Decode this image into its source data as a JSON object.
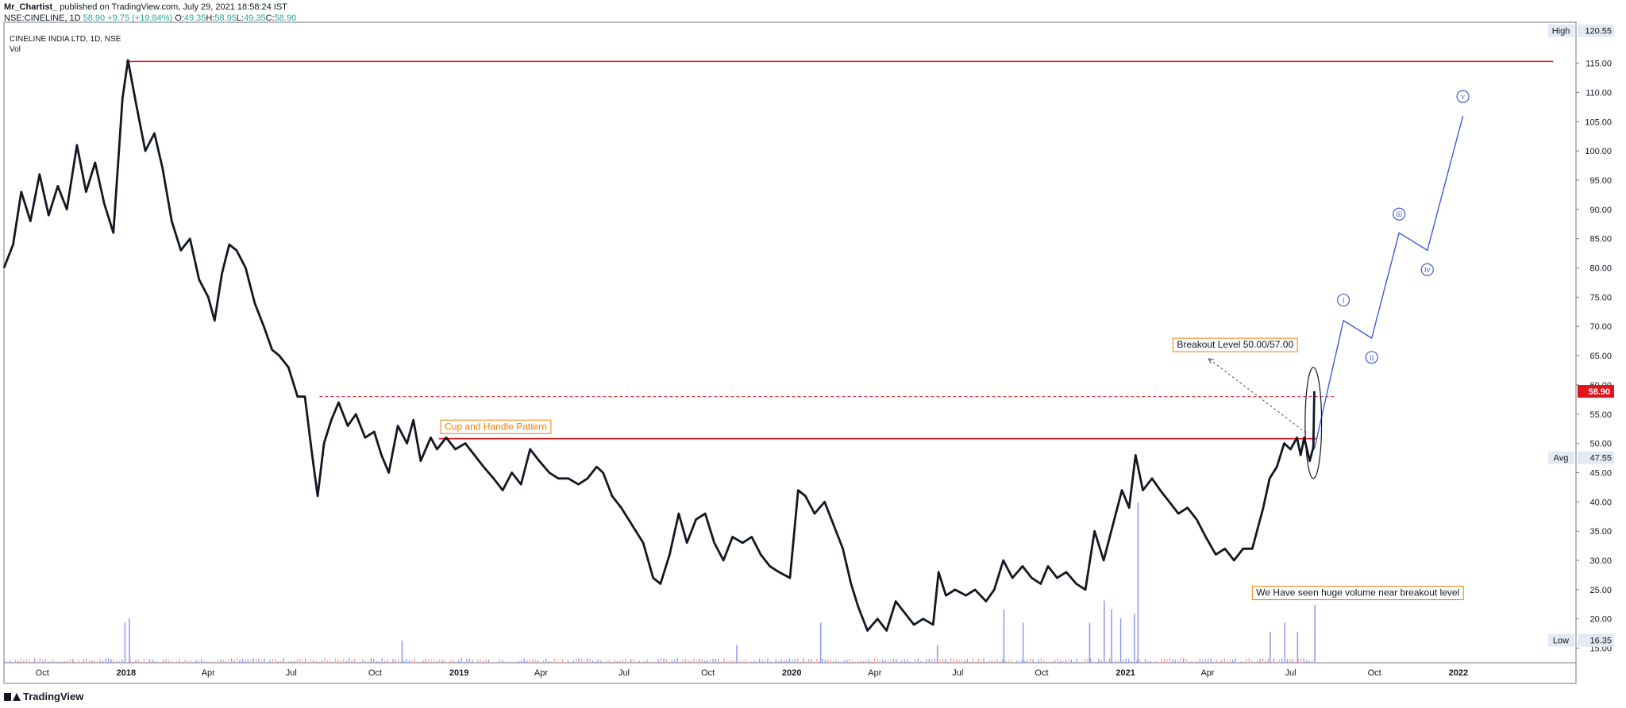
{
  "header": {
    "author": "Mr_Chartist_",
    "published": " published on TradingView.com, July 29, 2021 18:58:24 IST",
    "symbol_line_prefix": "NSE:CINELINE, 1D ",
    "last": "58.90",
    "change": "+9.75 (+19.84%)",
    "o_label": "O:",
    "o": "49.35",
    "h_label": "H:",
    "h": "58.95",
    "l_label": "L:",
    "l": "49.35",
    "c_label": "C:",
    "c": "58.90"
  },
  "chart_legend": {
    "title": "CINELINE INDIA LTD, 1D, NSE",
    "vol_label": "Vol"
  },
  "footer": {
    "brand": "TradingView"
  },
  "colors": {
    "price": "#131722",
    "resistance": "#e0161c",
    "wave": "#3d5bd9",
    "up_vol": "#8f98e8",
    "down_vol": "#f2a0a0",
    "text_orange": "#f57c00",
    "last_badge": "#e0161c"
  },
  "chart_data": {
    "type": "line",
    "title": "CINELINE INDIA LTD, 1D, NSE",
    "x_range": [
      "2017-08-20",
      "2022-05-10"
    ],
    "ylim": [
      12.5,
      122
    ],
    "scale": "linear",
    "grid": false,
    "x_tick_labels": [
      {
        "label": "Oct",
        "date": "2017-10-01",
        "bold": false
      },
      {
        "label": "2018",
        "date": "2018-01-01",
        "bold": true
      },
      {
        "label": "Apr",
        "date": "2018-04-01",
        "bold": false
      },
      {
        "label": "Jul",
        "date": "2018-07-01",
        "bold": false
      },
      {
        "label": "Oct",
        "date": "2018-10-01",
        "bold": false
      },
      {
        "label": "2019",
        "date": "2019-01-01",
        "bold": true
      },
      {
        "label": "Apr",
        "date": "2019-04-01",
        "bold": false
      },
      {
        "label": "Jul",
        "date": "2019-07-01",
        "bold": false
      },
      {
        "label": "Oct",
        "date": "2019-10-01",
        "bold": false
      },
      {
        "label": "2020",
        "date": "2020-01-01",
        "bold": true
      },
      {
        "label": "Apr",
        "date": "2020-04-01",
        "bold": false
      },
      {
        "label": "Jul",
        "date": "2020-07-01",
        "bold": false
      },
      {
        "label": "Oct",
        "date": "2020-10-01",
        "bold": false
      },
      {
        "label": "2021",
        "date": "2021-01-01",
        "bold": true
      },
      {
        "label": "Apr",
        "date": "2021-04-01",
        "bold": false
      },
      {
        "label": "Jul",
        "date": "2021-07-01",
        "bold": false
      },
      {
        "label": "Oct",
        "date": "2021-10-01",
        "bold": false
      },
      {
        "label": "2022",
        "date": "2022-01-01",
        "bold": true
      }
    ],
    "y_tick_labels": [
      "115.00",
      "110.00",
      "105.00",
      "100.00",
      "95.00",
      "90.00",
      "85.00",
      "80.00",
      "75.00",
      "70.00",
      "65.00",
      "60.00",
      "55.00",
      "50.00",
      "45.00",
      "40.00",
      "35.00",
      "30.00",
      "25.00",
      "20.00",
      "15.00"
    ],
    "y_tick_values": [
      115,
      110,
      105,
      100,
      95,
      90,
      85,
      80,
      75,
      70,
      65,
      60,
      55,
      50,
      45,
      40,
      35,
      30,
      25,
      20,
      15
    ],
    "series": [
      {
        "type": "line",
        "points": [
          [
            "2017-08-20",
            80
          ],
          [
            "2017-08-30",
            84
          ],
          [
            "2017-09-08",
            93
          ],
          [
            "2017-09-18",
            88
          ],
          [
            "2017-09-28",
            96
          ],
          [
            "2017-10-08",
            89
          ],
          [
            "2017-10-18",
            94
          ],
          [
            "2017-10-28",
            90
          ],
          [
            "2017-11-08",
            101
          ],
          [
            "2017-11-18",
            93
          ],
          [
            "2017-11-28",
            98
          ],
          [
            "2017-12-08",
            91
          ],
          [
            "2017-12-18",
            86
          ],
          [
            "2017-12-28",
            109
          ],
          [
            "2018-01-03",
            115.5
          ],
          [
            "2018-01-12",
            108
          ],
          [
            "2018-01-22",
            100
          ],
          [
            "2018-02-01",
            103
          ],
          [
            "2018-02-10",
            97
          ],
          [
            "2018-02-20",
            88
          ],
          [
            "2018-03-02",
            83
          ],
          [
            "2018-03-12",
            85
          ],
          [
            "2018-03-22",
            78
          ],
          [
            "2018-04-01",
            75
          ],
          [
            "2018-04-08",
            71
          ],
          [
            "2018-04-16",
            79
          ],
          [
            "2018-04-24",
            84
          ],
          [
            "2018-05-02",
            83
          ],
          [
            "2018-05-12",
            80
          ],
          [
            "2018-05-22",
            74
          ],
          [
            "2018-06-01",
            70
          ],
          [
            "2018-06-10",
            66
          ],
          [
            "2018-06-18",
            65
          ],
          [
            "2018-06-28",
            63
          ],
          [
            "2018-07-08",
            58
          ],
          [
            "2018-07-16",
            58
          ],
          [
            "2018-07-24",
            48
          ],
          [
            "2018-07-30",
            41
          ],
          [
            "2018-08-06",
            50
          ],
          [
            "2018-08-14",
            54
          ],
          [
            "2018-08-22",
            57
          ],
          [
            "2018-09-01",
            53
          ],
          [
            "2018-09-10",
            55
          ],
          [
            "2018-09-20",
            51
          ],
          [
            "2018-09-30",
            52
          ],
          [
            "2018-10-08",
            48
          ],
          [
            "2018-10-16",
            45
          ],
          [
            "2018-10-26",
            53
          ],
          [
            "2018-11-05",
            50
          ],
          [
            "2018-11-12",
            54
          ],
          [
            "2018-11-20",
            47
          ],
          [
            "2018-12-01",
            51
          ],
          [
            "2018-12-08",
            49
          ],
          [
            "2018-12-18",
            51
          ],
          [
            "2018-12-28",
            49
          ],
          [
            "2019-01-08",
            50
          ],
          [
            "2019-01-18",
            48
          ],
          [
            "2019-01-28",
            46
          ],
          [
            "2019-02-08",
            44
          ],
          [
            "2019-02-18",
            42
          ],
          [
            "2019-02-28",
            45
          ],
          [
            "2019-03-10",
            43
          ],
          [
            "2019-03-20",
            49
          ],
          [
            "2019-03-30",
            47
          ],
          [
            "2019-04-10",
            45
          ],
          [
            "2019-04-20",
            44
          ],
          [
            "2019-05-01",
            44
          ],
          [
            "2019-05-12",
            43
          ],
          [
            "2019-05-22",
            44
          ],
          [
            "2019-06-01",
            46
          ],
          [
            "2019-06-08",
            45
          ],
          [
            "2019-06-18",
            41
          ],
          [
            "2019-06-28",
            39
          ],
          [
            "2019-07-10",
            36
          ],
          [
            "2019-07-22",
            33
          ],
          [
            "2019-08-02",
            27
          ],
          [
            "2019-08-10",
            26
          ],
          [
            "2019-08-20",
            31
          ],
          [
            "2019-08-30",
            38
          ],
          [
            "2019-09-08",
            33
          ],
          [
            "2019-09-18",
            37
          ],
          [
            "2019-09-28",
            38
          ],
          [
            "2019-10-08",
            33
          ],
          [
            "2019-10-18",
            30
          ],
          [
            "2019-10-28",
            34
          ],
          [
            "2019-11-08",
            33
          ],
          [
            "2019-11-18",
            34
          ],
          [
            "2019-11-28",
            31
          ],
          [
            "2019-12-08",
            29
          ],
          [
            "2019-12-18",
            28
          ],
          [
            "2019-12-30",
            27
          ],
          [
            "2020-01-08",
            42
          ],
          [
            "2020-01-16",
            41
          ],
          [
            "2020-01-26",
            38
          ],
          [
            "2020-02-06",
            40
          ],
          [
            "2020-02-16",
            36
          ],
          [
            "2020-02-26",
            32
          ],
          [
            "2020-03-06",
            26
          ],
          [
            "2020-03-14",
            22
          ],
          [
            "2020-03-24",
            18
          ],
          [
            "2020-04-04",
            20
          ],
          [
            "2020-04-14",
            18
          ],
          [
            "2020-04-24",
            23
          ],
          [
            "2020-05-04",
            21
          ],
          [
            "2020-05-14",
            19
          ],
          [
            "2020-05-24",
            20
          ],
          [
            "2020-06-04",
            19
          ],
          [
            "2020-06-10",
            28
          ],
          [
            "2020-06-18",
            24
          ],
          [
            "2020-06-28",
            25
          ],
          [
            "2020-07-10",
            24
          ],
          [
            "2020-07-20",
            25
          ],
          [
            "2020-08-01",
            23
          ],
          [
            "2020-08-10",
            25
          ],
          [
            "2020-08-20",
            30
          ],
          [
            "2020-08-30",
            27
          ],
          [
            "2020-09-10",
            29
          ],
          [
            "2020-09-20",
            27
          ],
          [
            "2020-09-30",
            26
          ],
          [
            "2020-10-08",
            29
          ],
          [
            "2020-10-18",
            27
          ],
          [
            "2020-10-28",
            28
          ],
          [
            "2020-11-08",
            26
          ],
          [
            "2020-11-18",
            25
          ],
          [
            "2020-11-28",
            35
          ],
          [
            "2020-12-08",
            30
          ],
          [
            "2020-12-18",
            36
          ],
          [
            "2020-12-28",
            42
          ],
          [
            "2021-01-05",
            39
          ],
          [
            "2021-01-12",
            48
          ],
          [
            "2021-01-20",
            42
          ],
          [
            "2021-01-30",
            44
          ],
          [
            "2021-02-08",
            42
          ],
          [
            "2021-02-18",
            40
          ],
          [
            "2021-02-28",
            38
          ],
          [
            "2021-03-10",
            39
          ],
          [
            "2021-03-20",
            37
          ],
          [
            "2021-03-30",
            34
          ],
          [
            "2021-04-10",
            31
          ],
          [
            "2021-04-20",
            32
          ],
          [
            "2021-04-30",
            30
          ],
          [
            "2021-05-10",
            32
          ],
          [
            "2021-05-20",
            32
          ],
          [
            "2021-06-01",
            39
          ],
          [
            "2021-06-08",
            44
          ],
          [
            "2021-06-16",
            46
          ],
          [
            "2021-06-24",
            50
          ],
          [
            "2021-07-01",
            49
          ],
          [
            "2021-07-08",
            51
          ],
          [
            "2021-07-12",
            48
          ],
          [
            "2021-07-16",
            51
          ],
          [
            "2021-07-22",
            47
          ],
          [
            "2021-07-26",
            49.35
          ],
          [
            "2021-07-27",
            58.9
          ]
        ]
      }
    ],
    "volume": {
      "label": "Vol",
      "highlighted_dates": [
        "2017-12-30",
        "2018-01-04",
        "2018-10-30",
        "2019-11-01",
        "2020-02-01",
        "2020-06-08",
        "2020-08-20",
        "2020-09-10",
        "2020-11-22",
        "2020-12-08",
        "2020-12-16",
        "2020-12-26",
        "2021-01-10",
        "2021-01-14",
        "2021-06-08",
        "2021-06-24",
        "2021-07-08",
        "2021-07-27"
      ],
      "highlighted_values": [
        9,
        10,
        5,
        4,
        9,
        4,
        12,
        9,
        9,
        14,
        12,
        10,
        11,
        36,
        7,
        9,
        7,
        13
      ]
    },
    "levels": [
      {
        "value": 115.3,
        "from": "2018-01-01",
        "to": "2022-04-15",
        "style": "solid"
      },
      {
        "value": 50.8,
        "from": "2018-12-10",
        "to": "2021-07-30",
        "style": "solid"
      },
      {
        "value": 58.0,
        "from": "2018-08-01",
        "to": "2021-08-20",
        "style": "dashed"
      }
    ],
    "wave_projection": [
      [
        "2021-07-27",
        49
      ],
      [
        "2021-08-28",
        71
      ],
      [
        "2021-09-28",
        68
      ],
      [
        "2021-10-28",
        86
      ],
      [
        "2021-11-28",
        83
      ],
      [
        "2022-01-06",
        106
      ]
    ],
    "wave_labels": [
      {
        "label": "i",
        "date": "2021-08-28",
        "value": 74.5
      },
      {
        "label": "ii",
        "date": "2021-09-28",
        "value": 64.7
      },
      {
        "label": "iii",
        "date": "2021-10-28",
        "value": 89.2
      },
      {
        "label": "iv",
        "date": "2021-11-28",
        "value": 79.7
      },
      {
        "label": "v",
        "date": "2022-01-06",
        "value": 109.3
      }
    ],
    "annotations": [
      {
        "text": "Cup and Handle Pattern",
        "date": "2018-12-12",
        "value": 52.9,
        "style": "orange"
      },
      {
        "text": "Breakout Level 50.00/57.00",
        "date": "2021-02-22",
        "value": 66.9,
        "style": "dark"
      },
      {
        "text": "We Have seen huge volume near breakout level",
        "date": "2021-05-20",
        "value": 24.5,
        "style": "dark"
      }
    ],
    "arrow": {
      "from": [
        "2021-07-18",
        51.8
      ],
      "to": [
        "2021-04-02",
        64.5
      ]
    },
    "ellipse": {
      "center_date": "2021-07-26",
      "center_value": 53.5,
      "rx_days": 9,
      "ry_value": 9.5
    },
    "price_badges": [
      {
        "label": "High",
        "value_text": "120.55",
        "value": 120.55,
        "style": "grey"
      },
      {
        "label": "",
        "value_text": "58.90",
        "value": 58.9,
        "style": "red"
      },
      {
        "label": "Avg",
        "value_text": "47.55",
        "value": 47.55,
        "style": "grey"
      },
      {
        "label": "Low",
        "value_text": "16.35",
        "value": 16.35,
        "style": "grey"
      }
    ]
  }
}
